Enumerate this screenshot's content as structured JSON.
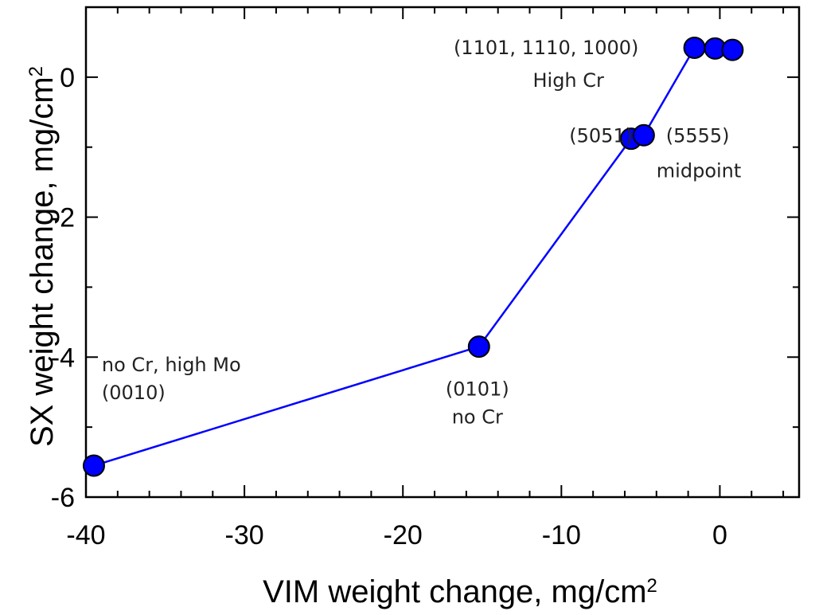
{
  "chart_data": {
    "type": "scatter",
    "x_axis": {
      "label_main": "VIM weight change, mg/cm",
      "label_sup": "2",
      "range": [
        -40,
        5
      ],
      "ticks": [
        -40,
        -30,
        -20,
        -10,
        0
      ],
      "tick_labels": [
        "-40",
        "-30",
        "-20",
        "-10",
        "0"
      ],
      "minor_step": 2
    },
    "y_axis": {
      "label_main": "SX weight change, mg/cm",
      "label_sup": "2",
      "range": [
        -6,
        1
      ],
      "ticks": [
        -6,
        -4,
        -2,
        0
      ],
      "tick_labels": [
        "-6",
        "-4",
        "-2",
        "0"
      ],
      "minor_step": 1
    },
    "grid": false,
    "series": [
      {
        "color": "#0000ff",
        "marker": "circle",
        "connected": true,
        "points": [
          {
            "x": -39.5,
            "y": -5.55
          },
          {
            "x": -15.2,
            "y": -3.85
          },
          {
            "x": -5.6,
            "y": -0.88
          },
          {
            "x": -4.8,
            "y": -0.83
          },
          {
            "x": -1.6,
            "y": 0.42
          },
          {
            "x": -0.3,
            "y": 0.41
          },
          {
            "x": 0.8,
            "y": 0.39
          }
        ]
      }
    ],
    "annotations": [
      {
        "lines": [
          "no Cr, high Mo",
          "(0010)"
        ],
        "x": -39.0,
        "y": -4.2,
        "anchor": "start"
      },
      {
        "lines": [
          "(0101)",
          "no Cr"
        ],
        "x": -15.3,
        "y": -4.55,
        "anchor": "middle"
      },
      {
        "lines": [
          "(5051)"
        ],
        "x": -9.5,
        "y": -0.93,
        "anchor": "start"
      },
      {
        "lines": [
          "(5555)"
        ],
        "x": -3.4,
        "y": -0.93,
        "anchor": "start"
      },
      {
        "lines": [
          "midpoint"
        ],
        "x": -4.0,
        "y": -1.43,
        "anchor": "start"
      },
      {
        "lines": [
          "(1101, 1110, 1000)"
        ],
        "x": -16.8,
        "y": 0.33,
        "anchor": "start"
      },
      {
        "lines": [
          "High Cr"
        ],
        "x": -11.8,
        "y": -0.14,
        "anchor": "start"
      }
    ]
  }
}
